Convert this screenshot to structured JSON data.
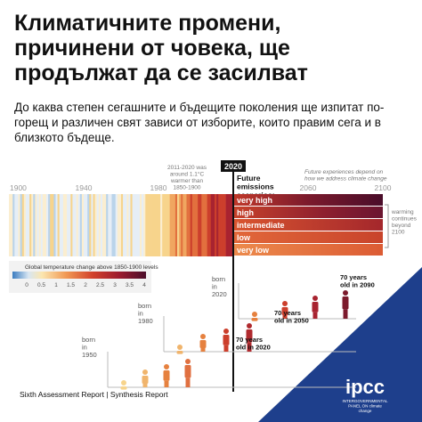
{
  "header": {
    "title": "Климатичните промени, причинени от човека, ще продължат да се засилват",
    "subtitle": "До каква степен сегашните и бъдещите поколения ще изпитат по-горещ и различен свят зависи от изборите, които правим сега и в близкото бъдеще."
  },
  "timeline": {
    "years": [
      "1900",
      "1940",
      "1980",
      "2020",
      "2060",
      "2100"
    ],
    "past_note": "2011-2020 was around 1.1°C warmer than 1850-1900",
    "scenarios_title": "Future emissions scenarios:",
    "future_note": "Future experiences depend on how we address climate change",
    "scenarios": [
      "very high",
      "high",
      "intermediate",
      "low",
      "very low"
    ],
    "beyond_note": "warming continues beyond 2100"
  },
  "legend": {
    "title": "Global temperature change above 1850-1900 levels",
    "ticks": [
      "0",
      "0.5",
      "1",
      "1.5",
      "2",
      "2.5",
      "3",
      "3.5",
      "4"
    ]
  },
  "generations": [
    {
      "born": "born in 2020",
      "age": "70 years old in 2090"
    },
    {
      "born": "born in 1980",
      "age": "70 years old in 2050"
    },
    {
      "born": "born in 1950",
      "age": "70 years old in 2020"
    }
  ],
  "footer": {
    "report": "Sixth Assessment Report | Synthesis Report",
    "logo": "ipcc",
    "org": "INTERGOVERNMENTAL PANEL ON climate change"
  }
}
